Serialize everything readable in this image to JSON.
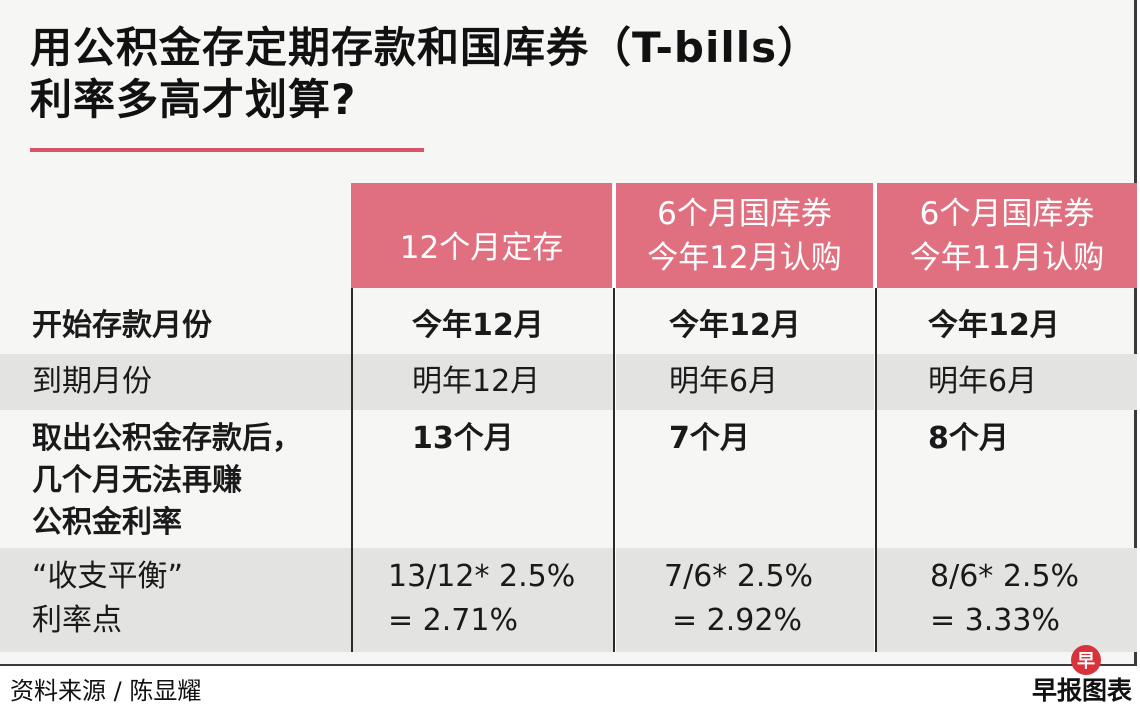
{
  "title": {
    "line1": "用公积金存定期存款和国库券（T-bills）",
    "line2": "利率多高才划算?"
  },
  "columns": [
    {
      "lines": [
        "12个月定存"
      ]
    },
    {
      "lines": [
        "6个月国库券",
        "今年12月认购"
      ]
    },
    {
      "lines": [
        "6个月国库券",
        "今年11月认购"
      ]
    }
  ],
  "rows": [
    {
      "label_lines": [
        "开始存款月份"
      ],
      "values": [
        [
          "今年12月"
        ],
        [
          "今年12月"
        ],
        [
          "今年12月"
        ]
      ]
    },
    {
      "label_lines": [
        "到期月份"
      ],
      "values": [
        [
          "明年12月"
        ],
        [
          "明年6月"
        ],
        [
          "明年6月"
        ]
      ]
    },
    {
      "label_lines": [
        "取出公积金存款后，",
        "几个月无法再赚",
        "公积金利率"
      ],
      "values": [
        [
          "13个月"
        ],
        [
          "7个月"
        ],
        [
          "8个月"
        ]
      ]
    },
    {
      "label_lines": [
        "“收支平衡”",
        "利率点"
      ],
      "values": [
        [
          "13/12* 2.5%",
          "= 2.71%"
        ],
        [
          "7/6* 2.5%",
          "= 2.92%"
        ],
        [
          "8/6* 2.5%",
          "= 3.33%"
        ]
      ]
    }
  ],
  "footer": {
    "source": "资料来源 / 陈显耀",
    "credit": "早报图表",
    "logo_char": "早"
  },
  "colors": {
    "header_bg": "#e0707f",
    "accent": "#d9546a",
    "shade_row": "#e3e3e1",
    "logo": "#d8323a"
  }
}
